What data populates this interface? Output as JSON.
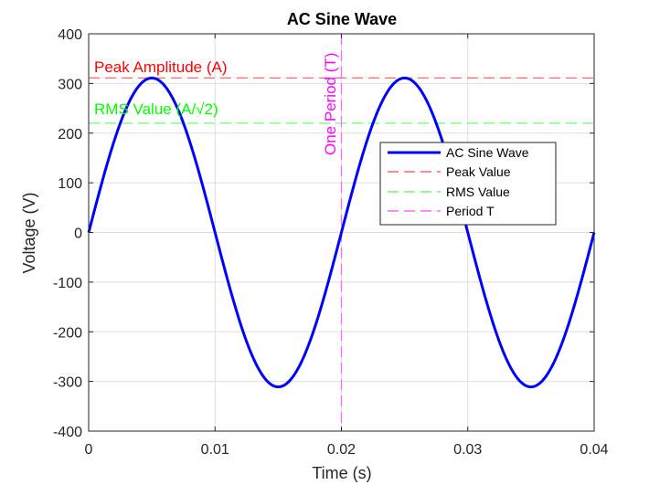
{
  "chart_data": {
    "type": "line",
    "title": "AC Sine Wave",
    "xlabel": "Time (s)",
    "ylabel": "Voltage (V)",
    "xlim": [
      0,
      0.04
    ],
    "ylim": [
      -400,
      400
    ],
    "x_ticks": [
      0,
      0.01,
      0.02,
      0.03,
      0.04
    ],
    "x_tick_labels": [
      "0",
      "0.01",
      "0.02",
      "0.03",
      "0.04"
    ],
    "y_ticks": [
      -400,
      -300,
      -200,
      -100,
      0,
      100,
      200,
      300,
      400
    ],
    "y_tick_labels": [
      "-400",
      "-300",
      "-200",
      "-100",
      "0",
      "100",
      "200",
      "300",
      "400"
    ],
    "grid": true,
    "legend_position": "right",
    "series": [
      {
        "name": "AC Sine Wave",
        "kind": "sine",
        "amplitude": 311,
        "frequency_hz": 50,
        "style": "solid",
        "color": "#0000ff"
      },
      {
        "name": "Peak Value",
        "kind": "hline",
        "y": 311,
        "style": "dashed",
        "color": "#ff6666"
      },
      {
        "name": "RMS Value",
        "kind": "hline",
        "y": 220,
        "style": "dashed",
        "color": "#66ff66"
      },
      {
        "name": "Period T",
        "kind": "vline",
        "x": 0.02,
        "style": "dashed",
        "color": "#ff66ff"
      }
    ],
    "annotations": [
      {
        "text": "Peak Amplitude (A)",
        "color": "#ff0000"
      },
      {
        "text": "RMS  Value  (A/√2)",
        "color": "#00ff00"
      },
      {
        "text": "One  Period  (T)",
        "color": "#ff00ff"
      }
    ]
  }
}
